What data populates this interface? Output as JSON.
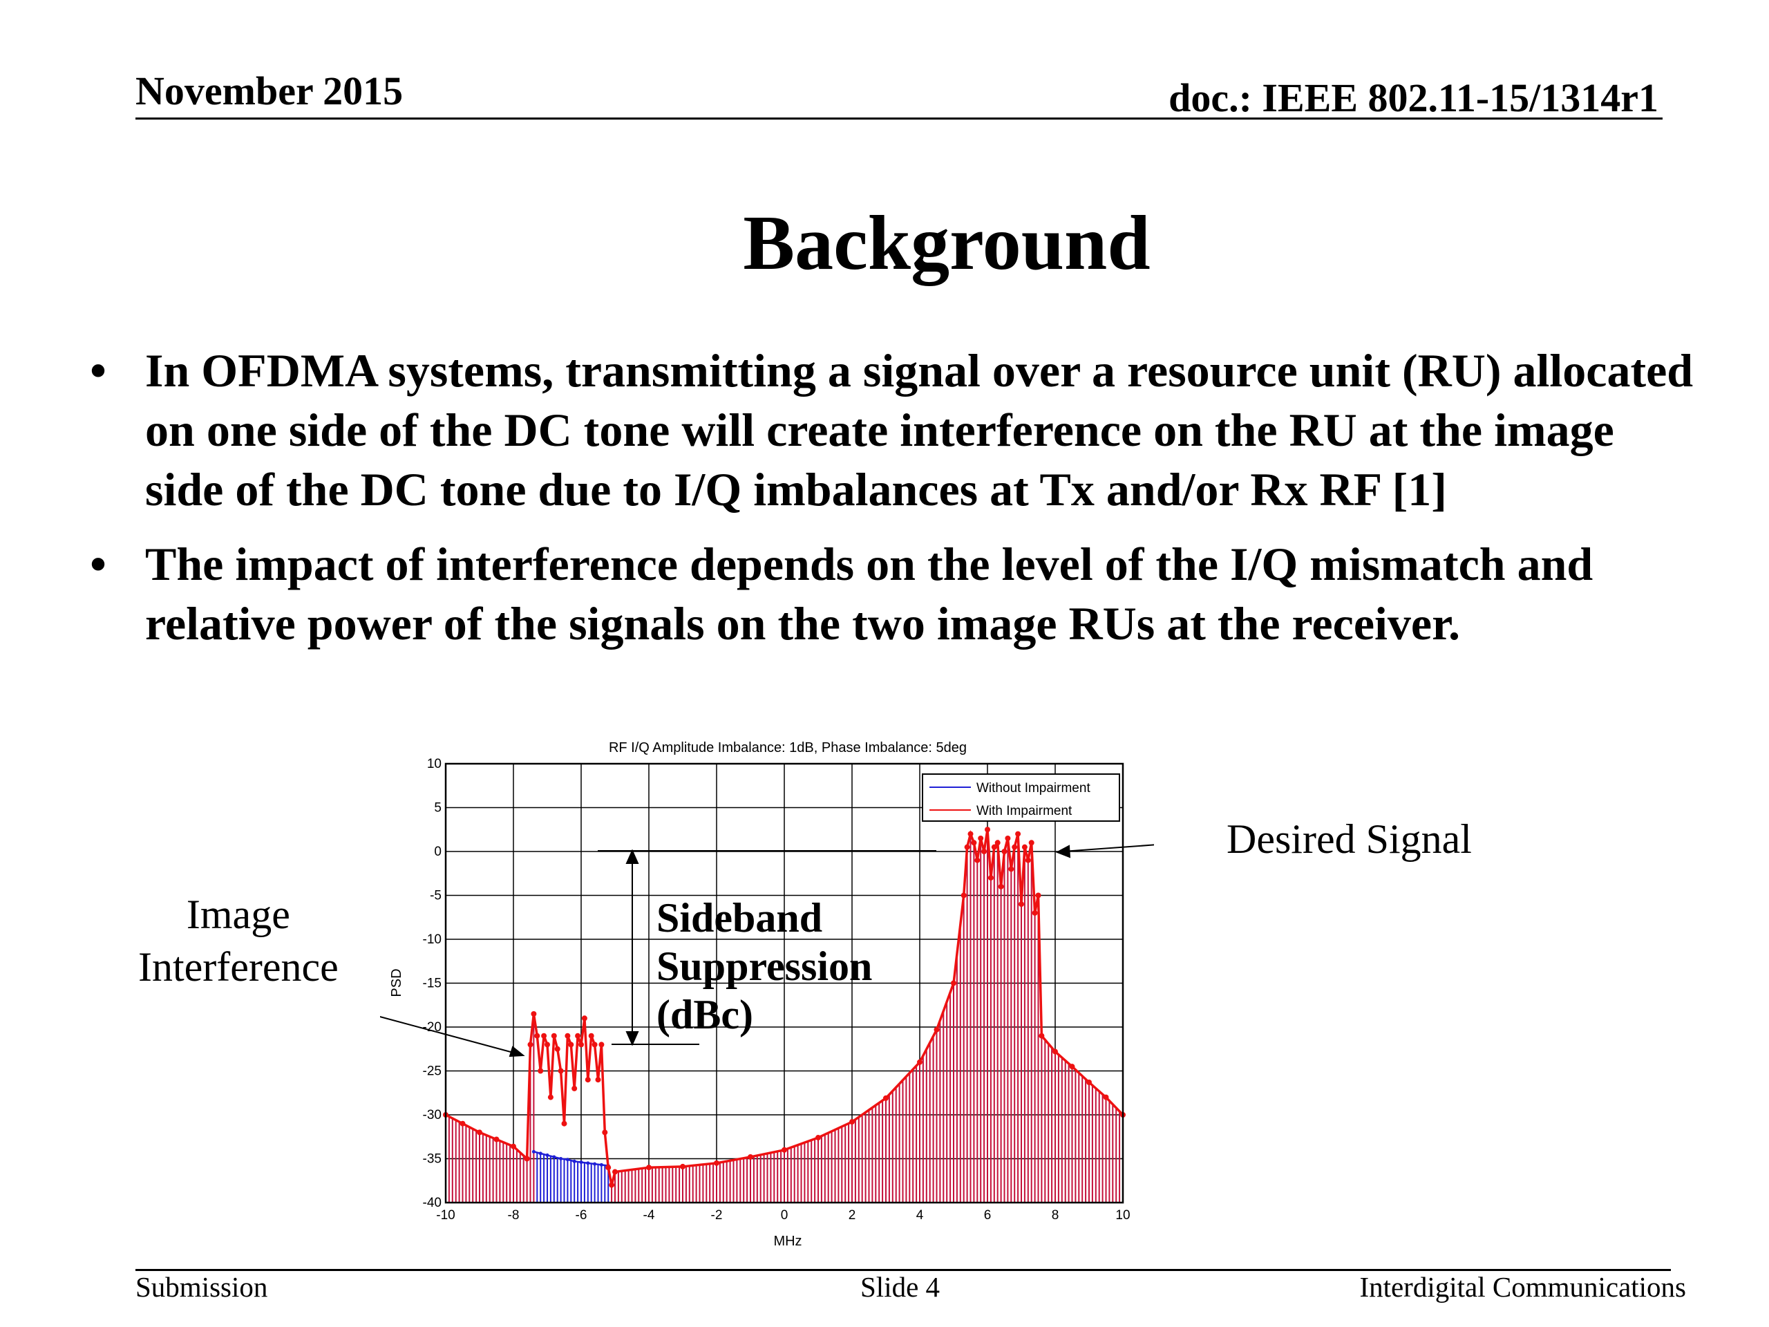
{
  "header": {
    "date": "November 2015",
    "doc": "doc.: IEEE 802.11-15/1314r1"
  },
  "slide": {
    "title": "Background",
    "bullets": [
      "In OFDMA systems, transmitting a signal over a resource unit (RU) allocated on one side of the DC tone will create interference on the RU at the image side of the DC tone due to I/Q imbalances at Tx and/or Rx RF [1]",
      "The impact of interference depends on the level of the I/Q mismatch and relative power of the signals on the two image RUs at the receiver."
    ],
    "bullet_glyph": "•"
  },
  "annotations": {
    "image_interference_line1": "Image",
    "image_interference_line2": "Interference",
    "desired_signal": "Desired Signal",
    "sideband_line1": "Sideband",
    "sideband_line2": "Suppression",
    "sideband_line3": "(dBc)"
  },
  "chart_data": {
    "type": "line",
    "title": "RF I/Q Amplitude Imbalance: 1dB, Phase Imbalance: 5deg",
    "xlabel": "MHz",
    "ylabel": "PSD",
    "xlim": [
      -10,
      10
    ],
    "ylim": [
      -40,
      10
    ],
    "xticks": [
      -10,
      -8,
      -6,
      -4,
      -2,
      0,
      2,
      4,
      6,
      8,
      10
    ],
    "yticks": [
      10,
      5,
      0,
      -5,
      -10,
      -15,
      -20,
      -25,
      -30,
      -35,
      -40
    ],
    "grid": true,
    "legend_position": "top-right",
    "series": [
      {
        "name": "Without Impairment",
        "color": "#1f1fd6",
        "x": [
          -7.4,
          -7.2,
          -7.0,
          -6.8,
          -6.6,
          -6.4,
          -6.2,
          -6.0,
          -5.8,
          -5.6,
          -5.4,
          -5.2
        ],
        "y": [
          -34.2,
          -34.4,
          -34.6,
          -34.8,
          -35.0,
          -35.1,
          -35.3,
          -35.4,
          -35.5,
          -35.6,
          -35.7,
          -35.8
        ]
      },
      {
        "name": "With Impairment",
        "color": "#ee1111",
        "x": [
          -10,
          -9.5,
          -9,
          -8.5,
          -8,
          -7.6,
          -7.5,
          -7.4,
          -7.3,
          -7.2,
          -7.1,
          -7.0,
          -6.9,
          -6.8,
          -6.7,
          -6.6,
          -6.5,
          -6.4,
          -6.3,
          -6.2,
          -6.1,
          -6.0,
          -5.9,
          -5.8,
          -5.7,
          -5.6,
          -5.5,
          -5.4,
          -5.3,
          -5.2,
          -5.1,
          -5.0,
          -4,
          -3,
          -2,
          -1,
          0,
          1,
          2,
          3,
          4,
          4.5,
          5.0,
          5.3,
          5.4,
          5.5,
          5.6,
          5.7,
          5.8,
          5.9,
          6.0,
          6.1,
          6.2,
          6.3,
          6.4,
          6.5,
          6.6,
          6.7,
          6.8,
          6.9,
          7.0,
          7.1,
          7.2,
          7.3,
          7.4,
          7.5,
          7.6,
          8,
          8.5,
          9,
          9.5,
          10
        ],
        "y": [
          -30.0,
          -31.0,
          -32.0,
          -32.8,
          -33.6,
          -35.0,
          -22.0,
          -18.5,
          -21.0,
          -25.0,
          -21.0,
          -22.0,
          -28.0,
          -21.0,
          -22.5,
          -25.0,
          -31.0,
          -21.0,
          -22.0,
          -27.0,
          -21.0,
          -22.0,
          -19.0,
          -26.0,
          -21.0,
          -22.0,
          -26.0,
          -22.0,
          -32.0,
          -36.0,
          -38.0,
          -36.5,
          -36.0,
          -35.9,
          -35.5,
          -34.8,
          -34.0,
          -32.6,
          -30.8,
          -28.1,
          -24.0,
          -20.3,
          -15.0,
          -5.0,
          0.5,
          2.0,
          1.0,
          -1.0,
          1.5,
          0.0,
          2.5,
          -3.0,
          0.5,
          1.0,
          -4.0,
          0.0,
          1.5,
          -2.0,
          0.5,
          2.0,
          -6.0,
          0.5,
          -1.0,
          1.0,
          -7.0,
          -5.0,
          -21.0,
          -22.8,
          -24.5,
          -26.3,
          -28.0,
          -30.0
        ]
      }
    ]
  },
  "footer": {
    "left": "Submission",
    "center": "Slide 4",
    "right": "Interdigital Communications"
  }
}
